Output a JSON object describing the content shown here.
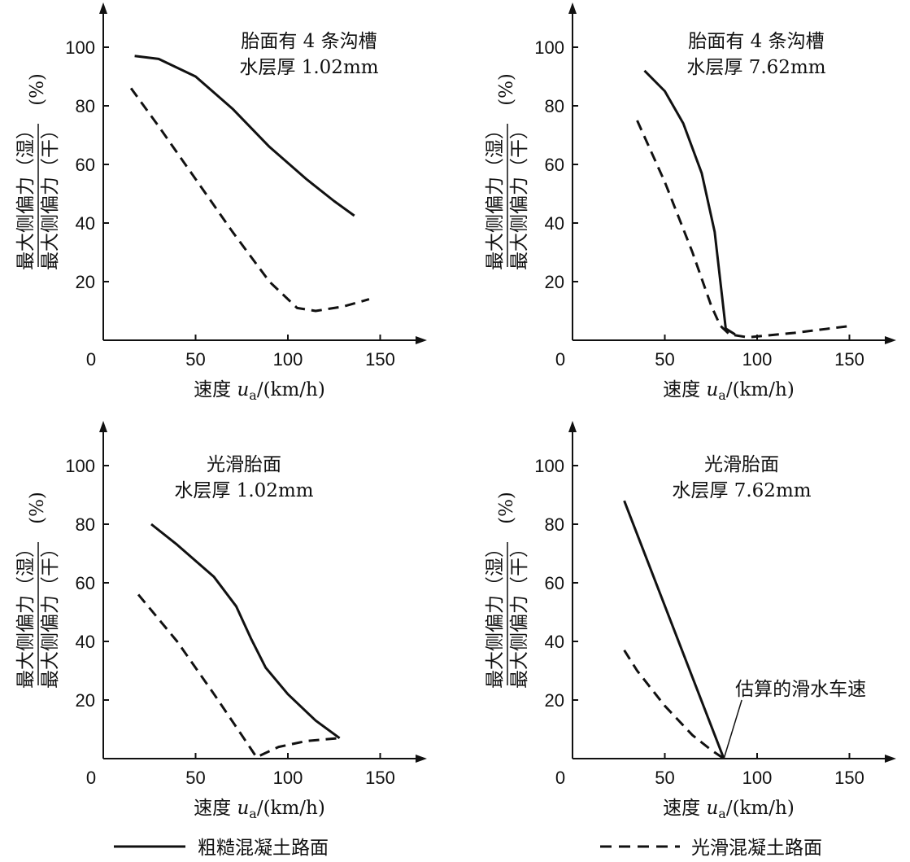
{
  "chart_data": [
    {
      "type": "line",
      "title": [
        "胎面有 4 条沟槽",
        "水层厚 1.02mm"
      ],
      "xlabel": "速度 u_a/(km/h)",
      "xlabel_main": "速度 ",
      "xlabel_var": "u",
      "xlabel_sub": "a",
      "xlabel_unit": "/(km/h)",
      "ylabel_numerator": "最大侧偏力（湿）",
      "ylabel_denominator": "最大侧偏力（干）",
      "ylabel_unit": "(%)",
      "xlim": [
        0,
        175
      ],
      "ylim": [
        0,
        110
      ],
      "xticks": [
        0,
        50,
        100,
        150
      ],
      "yticks": [
        20,
        40,
        60,
        80,
        100
      ],
      "series": [
        {
          "name": "粗糙混凝土路面",
          "style": "solid",
          "points": [
            [
              17,
              97
            ],
            [
              30,
              96
            ],
            [
              50,
              90
            ],
            [
              70,
              79
            ],
            [
              90,
              66
            ],
            [
              110,
              55
            ],
            [
              125,
              47.5
            ],
            [
              136,
              42.5
            ]
          ]
        },
        {
          "name": "光滑混凝土路面",
          "style": "dashed",
          "points": [
            [
              15,
              86
            ],
            [
              30,
              73
            ],
            [
              50,
              55
            ],
            [
              70,
              37
            ],
            [
              90,
              20
            ],
            [
              105,
              11
            ],
            [
              115,
              10
            ],
            [
              130,
              11.5
            ],
            [
              144,
              14
            ]
          ]
        }
      ]
    },
    {
      "type": "line",
      "title": [
        "胎面有 4 条沟槽",
        "水层厚 7.62mm"
      ],
      "xlabel": "速度 u_a/(km/h)",
      "xlabel_main": "速度 ",
      "xlabel_var": "u",
      "xlabel_sub": "a",
      "xlabel_unit": "/(km/h)",
      "ylabel_numerator": "最大侧偏力（湿）",
      "ylabel_denominator": "最大侧偏力（干）",
      "ylabel_unit": "(%)",
      "xlim": [
        0,
        175
      ],
      "ylim": [
        0,
        110
      ],
      "xticks": [
        0,
        50,
        100,
        150
      ],
      "yticks": [
        20,
        40,
        60,
        80,
        100
      ],
      "series": [
        {
          "name": "粗糙混凝土路面",
          "style": "solid",
          "points": [
            [
              39,
              92
            ],
            [
              50,
              85
            ],
            [
              60,
              74
            ],
            [
              70,
              57
            ],
            [
              77,
              37
            ],
            [
              81,
              15
            ],
            [
              83,
              4
            ],
            [
              88,
              2
            ]
          ]
        },
        {
          "name": "光滑混凝土路面",
          "style": "dashed",
          "points": [
            [
              35,
              75
            ],
            [
              50,
              54
            ],
            [
              65,
              30
            ],
            [
              75,
              12
            ],
            [
              80,
              5
            ],
            [
              85,
              2
            ],
            [
              95,
              1
            ],
            [
              120,
              2.5
            ],
            [
              152,
              5
            ]
          ]
        }
      ]
    },
    {
      "type": "line",
      "title": [
        "光滑胎面",
        "水层厚 1.02mm"
      ],
      "xlabel": "速度 u_a/(km/h)",
      "xlabel_main": "速度 ",
      "xlabel_var": "u",
      "xlabel_sub": "a",
      "xlabel_unit": "/(km/h)",
      "ylabel_numerator": "最大侧偏力（湿）",
      "ylabel_denominator": "最大侧偏力（干）",
      "ylabel_unit": "(%)",
      "xlim": [
        0,
        175
      ],
      "ylim": [
        0,
        110
      ],
      "xticks": [
        0,
        50,
        100,
        150
      ],
      "yticks": [
        20,
        40,
        60,
        80,
        100
      ],
      "series": [
        {
          "name": "粗糙混凝土路面",
          "style": "solid",
          "points": [
            [
              26,
              80
            ],
            [
              40,
              73
            ],
            [
              60,
              62
            ],
            [
              72,
              52
            ],
            [
              80,
              41
            ],
            [
              88,
              31
            ],
            [
              100,
              22
            ],
            [
              115,
              13
            ],
            [
              128,
              7
            ]
          ]
        },
        {
          "name": "光滑混凝土路面",
          "style": "dashed",
          "points": [
            [
              19,
              56
            ],
            [
              40,
              40
            ],
            [
              60,
              22
            ],
            [
              75,
              8
            ],
            [
              83,
              0.5
            ],
            [
              95,
              4
            ],
            [
              110,
              6
            ],
            [
              128,
              7
            ]
          ]
        }
      ]
    },
    {
      "type": "line",
      "title": [
        "光滑胎面",
        "水层厚 7.62mm"
      ],
      "xlabel": "速度 u_a/(km/h)",
      "xlabel_main": "速度 ",
      "xlabel_var": "u",
      "xlabel_sub": "a",
      "xlabel_unit": "/(km/h)",
      "ylabel_numerator": "最大侧偏力（湿）",
      "ylabel_denominator": "最大侧偏力（干）",
      "ylabel_unit": "(%)",
      "xlim": [
        0,
        175
      ],
      "ylim": [
        0,
        110
      ],
      "xticks": [
        0,
        50,
        100,
        150
      ],
      "yticks": [
        20,
        40,
        60,
        80,
        100
      ],
      "annotation": {
        "text": "估算的滑水车速",
        "x": 82,
        "y": 0
      },
      "series": [
        {
          "name": "粗糙混凝土路面",
          "style": "solid",
          "points": [
            [
              28,
              88
            ],
            [
              82,
              0
            ]
          ]
        },
        {
          "name": "光滑混凝土路面",
          "style": "dashed",
          "points": [
            [
              28,
              37
            ],
            [
              35,
              30
            ],
            [
              50,
              18
            ],
            [
              65,
              8
            ],
            [
              75,
              3
            ],
            [
              82,
              0
            ]
          ]
        }
      ]
    }
  ],
  "legend": {
    "placement": "bottom",
    "items": [
      {
        "label": "粗糙混凝土路面",
        "style": "solid"
      },
      {
        "label": "光滑混凝土路面",
        "style": "dashed"
      }
    ]
  }
}
